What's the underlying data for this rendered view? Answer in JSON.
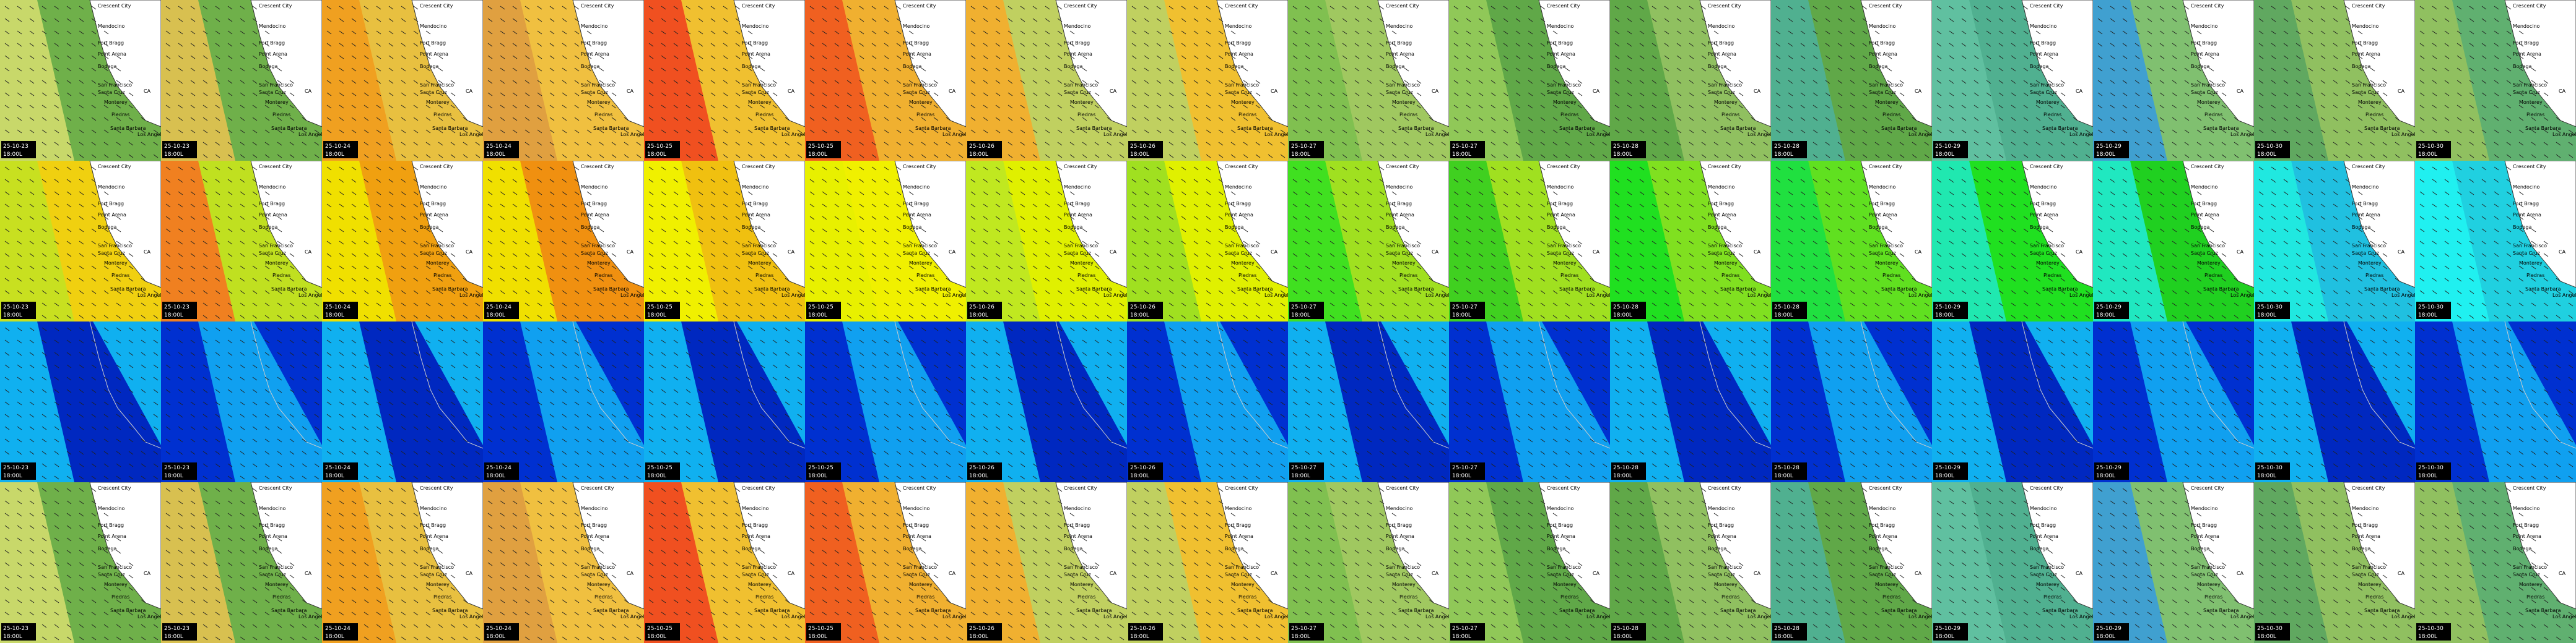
{
  "columns": [
    {
      "date": "25-10-23",
      "time": "18:00L"
    },
    {
      "date": "25-10-23",
      "time": "18:00L"
    },
    {
      "date": "25-10-24",
      "time": "18:00L"
    },
    {
      "date": "25-10-24",
      "time": "18:00L"
    },
    {
      "date": "25-10-25",
      "time": "18:00L"
    },
    {
      "date": "25-10-25",
      "time": "18:00L"
    },
    {
      "date": "25-10-26",
      "time": "18:00L"
    },
    {
      "date": "25-10-26",
      "time": "18:00L"
    },
    {
      "date": "25-10-27",
      "time": "18:00L"
    },
    {
      "date": "25-10-27",
      "time": "18:00L"
    },
    {
      "date": "25-10-28",
      "time": "18:00L"
    },
    {
      "date": "25-10-28",
      "time": "18:00L"
    },
    {
      "date": "25-10-29",
      "time": "18:00L"
    },
    {
      "date": "25-10-29",
      "time": "18:00L"
    },
    {
      "date": "25-10-30",
      "time": "18:00L"
    },
    {
      "date": "25-10-30",
      "time": "18:00L"
    }
  ],
  "map_labels": [
    "Crescent City",
    "Mendocino",
    "Fort Bragg",
    "Point Arena",
    "Bodega",
    "San Francisco",
    "Santa Cruz",
    "Monterey",
    "Piedras",
    "CA",
    "Santa Barbara",
    "Los Angeles"
  ]
}
